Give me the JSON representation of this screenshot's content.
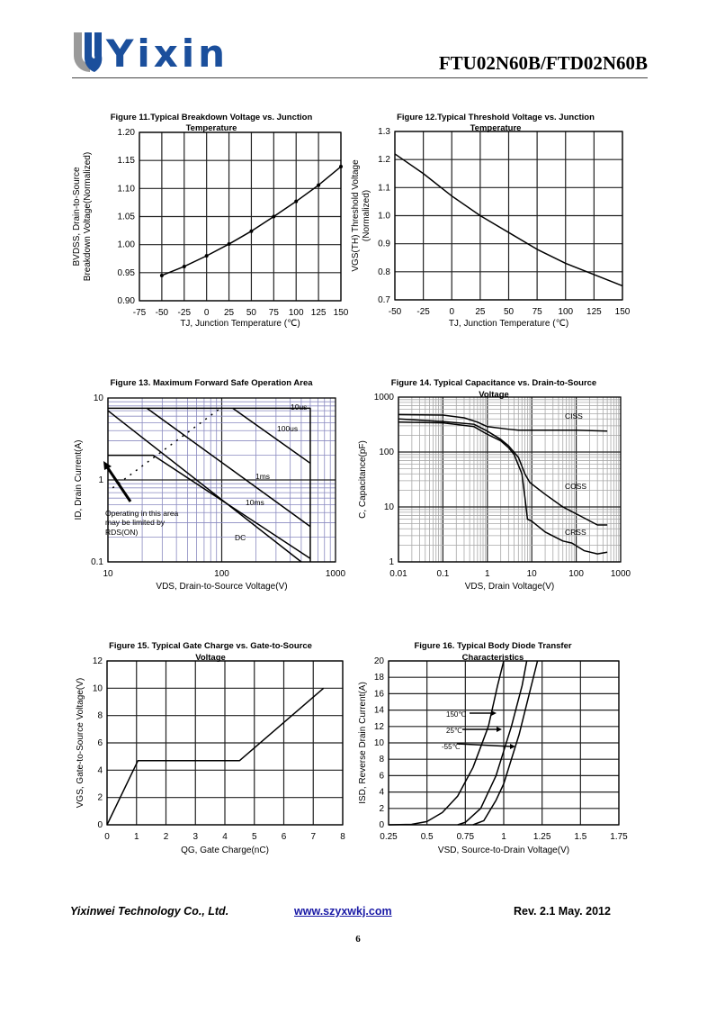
{
  "header": {
    "logo_text": "Yixin",
    "doc_title": "FTU02N60B/FTD02N60B",
    "brand_colors": {
      "blue": "#1b4f9c",
      "gray": "#9a9a9a"
    }
  },
  "footer": {
    "company": "Yixinwei Technology Co., Ltd.",
    "website": "www.szyxwkj.com",
    "revision": "Rev. 2.1 May. 2012",
    "page_number": "6"
  },
  "chart_data": [
    {
      "id": "fig11",
      "type": "line",
      "title": [
        "Figure 11.Typical Breakdown Voltage vs. Junction",
        "Temperature"
      ],
      "xlabel": "TJ, Junction Temperature (℃)",
      "ylabel": [
        "BVDSS, Drain-to-Source",
        "Breakdown Voltage(Normalized)"
      ],
      "xlim": [
        -75,
        150
      ],
      "ylim": [
        0.9,
        1.2
      ],
      "xticks": [
        "-75",
        "-50",
        "-25",
        "0",
        "25",
        "50",
        "75",
        "100",
        "125",
        "150"
      ],
      "yticks": [
        "0.90",
        "0.95",
        "1.00",
        "1.05",
        "1.10",
        "1.15",
        "1.20"
      ],
      "grid": true,
      "markers": true,
      "series": [
        {
          "x": [
            -50,
            -25,
            0,
            25,
            50,
            75,
            100,
            125,
            150
          ],
          "y": [
            0.945,
            0.961,
            0.98,
            1.001,
            1.024,
            1.05,
            1.077,
            1.106,
            1.139
          ]
        }
      ]
    },
    {
      "id": "fig12",
      "type": "line",
      "title": [
        "Figure 12.Typical Threshold Voltage vs. Junction",
        "Temperature"
      ],
      "xlabel": "TJ, Junction Temperature (℃)",
      "ylabel": [
        "VGS(TH) Threshold Voltage",
        "(Normalized)"
      ],
      "xlim": [
        -50,
        150
      ],
      "ylim": [
        0.7,
        1.3
      ],
      "xticks": [
        "-50",
        "-25",
        "0",
        "25",
        "50",
        "75",
        "100",
        "125",
        "150"
      ],
      "yticks": [
        "0.7",
        "0.8",
        "0.9",
        "1.0",
        "1.1",
        "1.2",
        "1.3"
      ],
      "grid": true,
      "series": [
        {
          "x": [
            -50,
            -25,
            0,
            25,
            50,
            75,
            100,
            125,
            150
          ],
          "y": [
            1.22,
            1.15,
            1.07,
            1.0,
            0.94,
            0.88,
            0.83,
            0.79,
            0.75
          ]
        }
      ]
    },
    {
      "id": "fig13",
      "type": "line",
      "xscale": "log",
      "yscale": "log",
      "title": [
        "Figure 13. Maximum Forward Safe Operation Area"
      ],
      "xlabel": "VDS, Drain-to-Source Voltage(V)",
      "ylabel": [
        "ID, Drain Current(A)"
      ],
      "xlim": [
        10,
        1000
      ],
      "ylim": [
        0.1,
        10
      ],
      "xticks": [
        "10",
        "100",
        "1000"
      ],
      "yticks": [
        "0.1",
        "1",
        "10"
      ],
      "grid": true,
      "grid_color": "#8a8ac0",
      "series": [
        {
          "name": "10us",
          "x": [
            10,
            600,
            600
          ],
          "y": [
            7.5,
            7.5,
            0.1
          ]
        },
        {
          "name": "100us",
          "x": [
            125,
            600
          ],
          "y": [
            7.5,
            1.6
          ]
        },
        {
          "name": "1ms",
          "x": [
            22,
            600
          ],
          "y": [
            7.5,
            0.27
          ]
        },
        {
          "name": "10ms",
          "x": [
            10,
            500
          ],
          "y": [
            7,
            0.1
          ]
        },
        {
          "name": "DC",
          "x": [
            10,
            25,
            600
          ],
          "y": [
            2,
            2,
            0.11
          ]
        },
        {
          "x": [
            11,
            95
          ],
          "y": [
            0.8,
            7.3
          ],
          "dashed": true
        }
      ],
      "annotations": [
        "10us",
        "100us",
        "1ms",
        "10ms",
        "DC",
        "Operating in this area",
        "may be limited by",
        "RDS(ON)"
      ]
    },
    {
      "id": "fig14",
      "type": "line",
      "xscale": "log",
      "yscale": "log",
      "title": [
        "Figure 14. Typical Capacitance vs. Drain-to-Source",
        "Voltage"
      ],
      "xlabel": "VDS, Drain Voltage(V)",
      "ylabel": [
        "C, Capacitance(pF)"
      ],
      "xlim": [
        0.01,
        1000
      ],
      "ylim": [
        1,
        1000
      ],
      "xticks": [
        "0.01",
        "0.1",
        "1",
        "10",
        "100",
        "1000"
      ],
      "yticks": [
        "1",
        "10",
        "100",
        "1000"
      ],
      "grid": true,
      "grid_color": "#a8a8a8",
      "series": [
        {
          "name": "CISS",
          "x": [
            0.01,
            0.1,
            0.3,
            0.6,
            1,
            3,
            5,
            10,
            100,
            500
          ],
          "y": [
            480,
            470,
            420,
            350,
            290,
            260,
            250,
            250,
            250,
            240
          ]
        },
        {
          "name": "COSS",
          "x": [
            0.01,
            0.1,
            0.5,
            1,
            2,
            3,
            5,
            7,
            9,
            20,
            50,
            100,
            300,
            500
          ],
          "y": [
            400,
            360,
            320,
            240,
            170,
            130,
            80,
            40,
            28,
            17,
            10,
            7.5,
            4.7,
            4.7
          ]
        },
        {
          "name": "CRSS",
          "x": [
            0.01,
            0.1,
            0.5,
            1,
            2,
            3,
            4,
            6,
            7,
            8,
            10,
            20,
            50,
            80,
            150,
            300,
            500
          ],
          "y": [
            350,
            340,
            290,
            210,
            160,
            120,
            90,
            40,
            15,
            6,
            5.5,
            3.5,
            2.4,
            2.2,
            1.6,
            1.4,
            1.5
          ]
        }
      ],
      "annotations": [
        "CISS",
        "COSS",
        "CRSS"
      ]
    },
    {
      "id": "fig15",
      "type": "line",
      "title": [
        "Figure 15. Typical Gate Charge vs. Gate-to-Source",
        "Voltage"
      ],
      "xlabel": "QG, Gate Charge(nC)",
      "ylabel": [
        "VGS, Gate-to-Source Voltage(V)"
      ],
      "xlim": [
        0,
        8
      ],
      "ylim": [
        0,
        12
      ],
      "xticks": [
        "0",
        "1",
        "2",
        "3",
        "4",
        "5",
        "6",
        "7",
        "8"
      ],
      "yticks": [
        "0",
        "2",
        "4",
        "6",
        "8",
        "10",
        "12"
      ],
      "grid": true,
      "series": [
        {
          "x": [
            0,
            1.05,
            4.5,
            7.35
          ],
          "y": [
            0,
            4.7,
            4.7,
            10
          ]
        }
      ]
    },
    {
      "id": "fig16",
      "type": "line",
      "title": [
        "Figure 16. Typical Body Diode Transfer",
        "Characteristics"
      ],
      "xlabel": "VSD, Source-to-Drain Voltage(V)",
      "ylabel": [
        "ISD, Reverse Drain Current(A)"
      ],
      "xlim": [
        0.25,
        1.75
      ],
      "ylim": [
        0,
        20
      ],
      "xticks": [
        "0.25",
        "0.5",
        "0.75",
        "1",
        "1.25",
        "1.5",
        "1.75"
      ],
      "yticks": [
        "0",
        "2",
        "4",
        "6",
        "8",
        "10",
        "12",
        "14",
        "16",
        "18",
        "20"
      ],
      "grid": true,
      "series": [
        {
          "name": "150℃",
          "x": [
            0.25,
            0.4,
            0.5,
            0.6,
            0.7,
            0.8,
            0.9,
            0.96,
            1.0
          ],
          "y": [
            0,
            0.05,
            0.4,
            1.5,
            3.5,
            7,
            12,
            17,
            20
          ]
        },
        {
          "name": "25℃",
          "x": [
            0.7,
            0.75,
            0.85,
            0.95,
            1.05,
            1.12,
            1.15
          ],
          "y": [
            0,
            0.3,
            2,
            6,
            12,
            17,
            20
          ]
        },
        {
          "name": "-55℃",
          "x": [
            0.8,
            0.87,
            0.95,
            1.0,
            1.1,
            1.18,
            1.22
          ],
          "y": [
            0,
            0.5,
            3,
            5,
            11,
            17,
            20
          ]
        }
      ],
      "annotations": [
        "150℃",
        "25℃",
        "-55℃"
      ]
    }
  ]
}
